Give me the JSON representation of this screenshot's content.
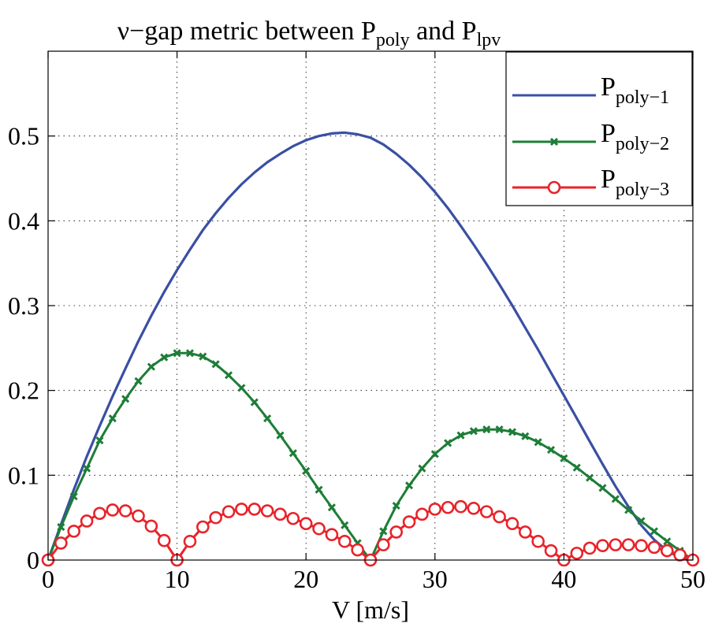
{
  "chart_data": {
    "type": "line",
    "title": {
      "prefix": "ν−gap metric between P",
      "sub1": "poly",
      "middle": " and P",
      "sub2": "lpv"
    },
    "xlabel": "V [m/s]",
    "ylabel": "",
    "xlim": [
      0,
      50
    ],
    "ylim": [
      0,
      0.6
    ],
    "xticks": [
      0,
      10,
      20,
      30,
      40,
      50
    ],
    "yticks": [
      0,
      0.1,
      0.2,
      0.3,
      0.4,
      0.5
    ],
    "xtick_labels": [
      "0",
      "10",
      "20",
      "30",
      "40",
      "50"
    ],
    "ytick_labels": [
      "0",
      "0.1",
      "0.2",
      "0.3",
      "0.4",
      "0.5"
    ],
    "grid": true,
    "legend_position": "top-right",
    "series": [
      {
        "name": "P",
        "sub": "poly−1",
        "color": "#3a4fa3",
        "marker": "none",
        "x": [
          0,
          1,
          2,
          3,
          4,
          5,
          6,
          7,
          8,
          9,
          10,
          11,
          12,
          13,
          14,
          15,
          16,
          17,
          18,
          19,
          20,
          21,
          22,
          23,
          24,
          25,
          26,
          27,
          28,
          29,
          30,
          31,
          32,
          33,
          34,
          35,
          36,
          37,
          38,
          39,
          40,
          41,
          42,
          43,
          44,
          45,
          46,
          47,
          48,
          49,
          50
        ],
        "y": [
          0,
          0.042,
          0.083,
          0.122,
          0.158,
          0.193,
          0.226,
          0.258,
          0.288,
          0.316,
          0.342,
          0.366,
          0.389,
          0.409,
          0.427,
          0.443,
          0.457,
          0.469,
          0.479,
          0.488,
          0.495,
          0.5,
          0.503,
          0.504,
          0.502,
          0.498,
          0.49,
          0.479,
          0.466,
          0.451,
          0.434,
          0.415,
          0.394,
          0.372,
          0.349,
          0.325,
          0.3,
          0.274,
          0.248,
          0.221,
          0.194,
          0.167,
          0.14,
          0.113,
          0.087,
          0.063,
          0.041,
          0.024,
          0.011,
          0.003,
          0
        ]
      },
      {
        "name": "P",
        "sub": "poly−2",
        "color": "#1e7d37",
        "marker": "x",
        "x": [
          0,
          1,
          2,
          3,
          4,
          5,
          6,
          7,
          8,
          9,
          10,
          11,
          12,
          13,
          14,
          15,
          16,
          17,
          18,
          19,
          20,
          21,
          22,
          23,
          24,
          25,
          26,
          27,
          28,
          29,
          30,
          31,
          32,
          33,
          34,
          35,
          36,
          37,
          38,
          39,
          40,
          41,
          42,
          43,
          44,
          45,
          46,
          47,
          48,
          49,
          50
        ],
        "y": [
          0,
          0.039,
          0.075,
          0.108,
          0.141,
          0.167,
          0.19,
          0.211,
          0.228,
          0.239,
          0.244,
          0.244,
          0.24,
          0.231,
          0.218,
          0.203,
          0.186,
          0.167,
          0.147,
          0.126,
          0.105,
          0.083,
          0.062,
          0.041,
          0.02,
          0,
          0.034,
          0.064,
          0.088,
          0.108,
          0.125,
          0.138,
          0.147,
          0.152,
          0.154,
          0.154,
          0.151,
          0.146,
          0.139,
          0.13,
          0.12,
          0.109,
          0.097,
          0.085,
          0.072,
          0.059,
          0.046,
          0.034,
          0.022,
          0.011,
          0
        ]
      },
      {
        "name": "P",
        "sub": "poly−3",
        "color": "#e8232a",
        "marker": "o",
        "x": [
          0,
          1,
          2,
          3,
          4,
          5,
          6,
          7,
          8,
          9,
          10,
          11,
          12,
          13,
          14,
          15,
          16,
          17,
          18,
          19,
          20,
          21,
          22,
          23,
          24,
          25,
          26,
          27,
          28,
          29,
          30,
          31,
          32,
          33,
          34,
          35,
          36,
          37,
          38,
          39,
          40,
          41,
          42,
          43,
          44,
          45,
          46,
          47,
          48,
          49,
          50
        ],
        "y": [
          0,
          0.02,
          0.034,
          0.046,
          0.055,
          0.059,
          0.058,
          0.052,
          0.04,
          0.023,
          0,
          0.022,
          0.039,
          0.05,
          0.057,
          0.06,
          0.06,
          0.058,
          0.054,
          0.049,
          0.043,
          0.037,
          0.03,
          0.022,
          0.012,
          0,
          0.018,
          0.033,
          0.045,
          0.054,
          0.06,
          0.062,
          0.063,
          0.061,
          0.057,
          0.051,
          0.043,
          0.033,
          0.022,
          0.011,
          0,
          0.008,
          0.014,
          0.017,
          0.018,
          0.018,
          0.017,
          0.015,
          0.011,
          0.006,
          0
        ]
      }
    ]
  }
}
